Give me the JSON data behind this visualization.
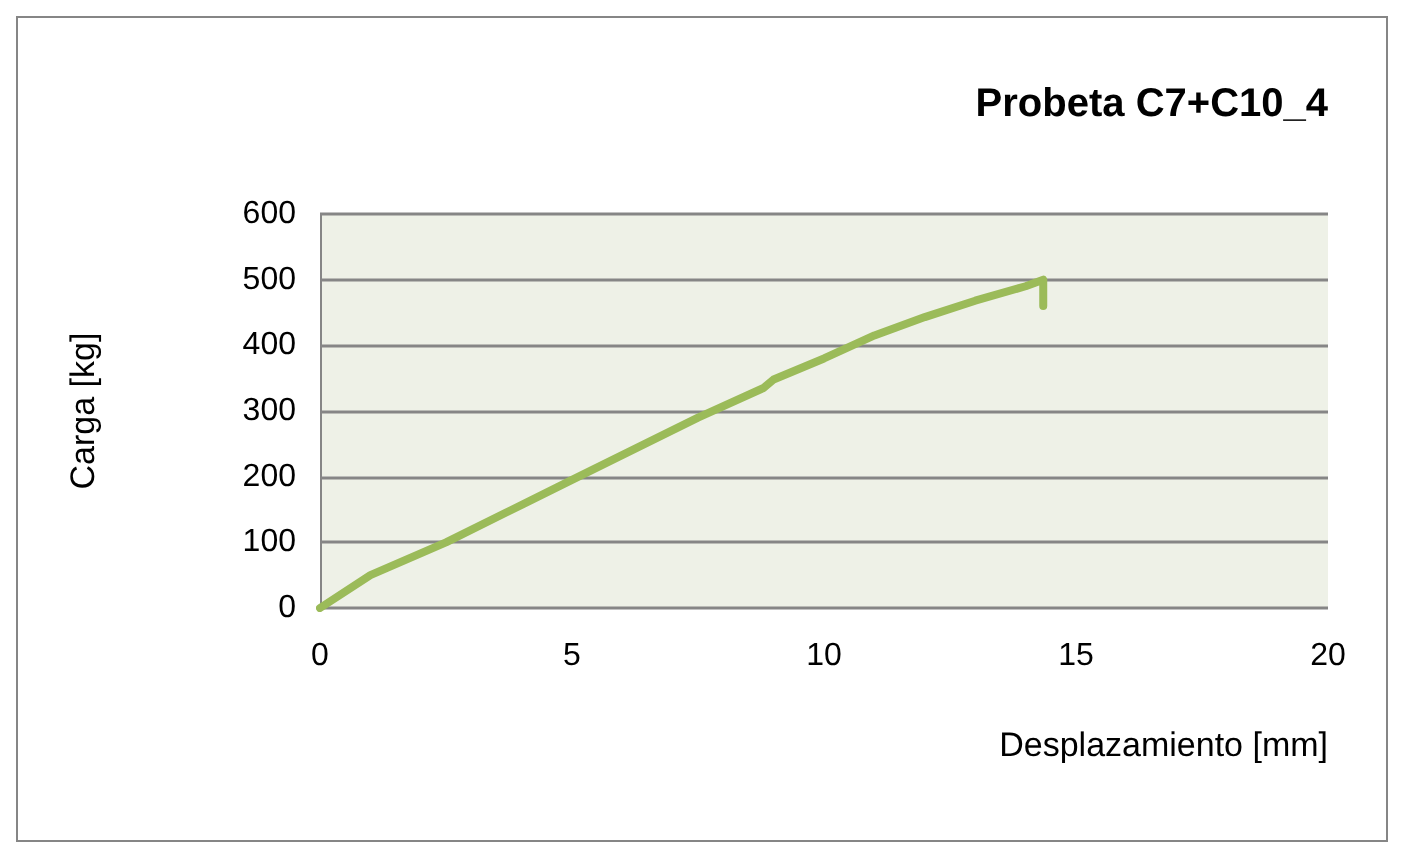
{
  "chart_data": {
    "type": "line",
    "title": "Probeta C7+C10_4",
    "xlabel": "Desplazamiento [mm]",
    "ylabel": "Carga [kg]",
    "xlim": [
      0,
      20
    ],
    "xticks": [
      0,
      5,
      10,
      15,
      20
    ],
    "ylim": [
      0,
      600
    ],
    "yticks": [
      0,
      100,
      200,
      300,
      400,
      500,
      600
    ],
    "grid": "y",
    "marker": "none",
    "line_style": "solid",
    "series": [
      {
        "color": "#9bbb59",
        "x": [
          0,
          1,
          2.5,
          5,
          7.5,
          8.8,
          9,
          10,
          11,
          12,
          13,
          14,
          14.35,
          14.35
        ],
        "values": [
          0,
          50,
          100,
          195,
          290,
          335,
          348,
          380,
          415,
          443,
          468,
          490,
          500,
          460
        ]
      }
    ]
  }
}
